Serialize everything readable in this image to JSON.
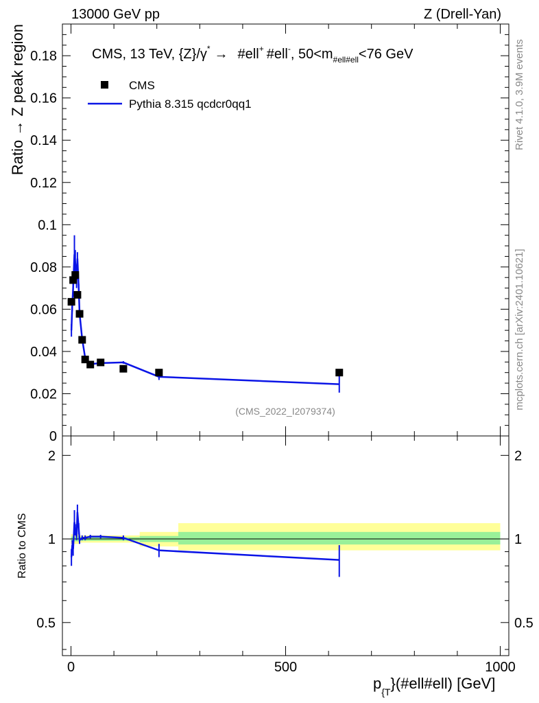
{
  "header": {
    "left": "13000 GeV pp",
    "right": "Z (Drell-Yan)"
  },
  "side_labels": {
    "rivet": "Rivet 4.1.0,  3.9M events",
    "mcplots": "mcplots.cern.ch [arXiv:2401.10621]"
  },
  "chart_data": [
    {
      "type": "scatter",
      "title": "CMS, 13 TeV, {Z}/γ* → #ell+ #ell-, 50<m#ell#ell<76 GeV",
      "title_parts": {
        "main": "CMS, 13 TeV, {Z}/γ",
        "sup1": "*",
        "arrow": "→",
        "ell1": "#ell",
        "sup2": "+",
        "ell2": "#ell",
        "sup3": "-",
        "range": ", 50<m",
        "sub": "#ell#ell",
        "tail": "<76 GeV"
      },
      "ylabel": "Ratio → Z peak region",
      "watermark": "(CMS_2022_I2079374)",
      "xlim": [
        -20,
        1020
      ],
      "ylim": [
        0,
        0.195
      ],
      "yticks": [
        0,
        0.02,
        0.04,
        0.06,
        0.08,
        0.1,
        0.12,
        0.14,
        0.16,
        0.18
      ],
      "ytick_labels": [
        "0",
        "0.02",
        "0.04",
        "0.06",
        "0.08",
        "0.1",
        "0.12",
        "0.14",
        "0.16",
        "0.18"
      ],
      "legend": [
        {
          "name": "CMS",
          "marker": "square"
        },
        {
          "name": "Pythia 8.315 qcdcr0qq1",
          "marker": "line"
        }
      ],
      "series": [
        {
          "name": "CMS",
          "x": [
            1,
            5,
            10,
            15,
            20,
            26,
            33,
            45,
            69,
            122,
            205,
            625
          ],
          "y": [
            0.0635,
            0.0738,
            0.0762,
            0.0668,
            0.0578,
            0.0455,
            0.0362,
            0.0338,
            0.0348,
            0.0318,
            0.03,
            0.03
          ]
        },
        {
          "name": "Pythia 8.315 qcdcr0qq1",
          "x": [
            1,
            3,
            5,
            8,
            10,
            13,
            15,
            18,
            20,
            26,
            33,
            45,
            69,
            122,
            205,
            625
          ],
          "y": [
            0.05,
            0.062,
            0.07,
            0.086,
            0.082,
            0.074,
            0.084,
            0.07,
            0.058,
            0.046,
            0.037,
            0.034,
            0.0345,
            0.0348,
            0.028,
            0.0245
          ],
          "yerr": [
            0.003,
            0.003,
            0.004,
            0.009,
            0.006,
            0.004,
            0.003,
            0.002,
            0.002,
            0.001,
            0.001,
            0.001,
            0.0006,
            0.0006,
            0.0015,
            0.004
          ]
        }
      ]
    },
    {
      "type": "line",
      "ylabel": "Ratio to CMS",
      "xlabel": "p{T}(#ell#ell) [GeV]",
      "xlabel_parts": {
        "p": "p",
        "sub": "{T",
        "rest": "}(#ell#ell) [GeV]"
      },
      "xlim": [
        -20,
        1020
      ],
      "ylim": [
        0.38,
        2.35
      ],
      "ylog": true,
      "yticks": [
        0.5,
        1,
        2
      ],
      "ytick_labels": [
        "0.5",
        "1",
        "2"
      ],
      "xticks": [
        0,
        500,
        1000
      ],
      "xtick_labels": [
        "0",
        "500",
        "1000"
      ],
      "bands": [
        {
          "x0": 0,
          "x1": 20,
          "yellow": [
            0.96,
            1.04
          ],
          "green": [
            0.98,
            1.02
          ]
        },
        {
          "x0": 20,
          "x1": 160,
          "yellow": [
            0.97,
            1.03
          ],
          "green": [
            0.985,
            1.015
          ]
        },
        {
          "x0": 160,
          "x1": 250,
          "yellow": [
            0.94,
            1.06
          ],
          "green": [
            0.975,
            1.025
          ]
        },
        {
          "x0": 250,
          "x1": 1000,
          "yellow": [
            0.91,
            1.14
          ],
          "green": [
            0.955,
            1.06
          ]
        }
      ],
      "series": [
        {
          "name": "Pythia 8.315 qcdcr0qq1",
          "x": [
            1,
            3,
            5,
            8,
            10,
            13,
            15,
            18,
            20,
            26,
            33,
            45,
            69,
            122,
            205,
            625
          ],
          "y": [
            0.86,
            0.95,
            0.92,
            1.15,
            1.08,
            1.02,
            1.25,
            1.09,
            0.99,
            1.01,
            1.01,
            1.02,
            1.02,
            1.01,
            0.91,
            0.84
          ],
          "yerr": [
            0.06,
            0.04,
            0.05,
            0.12,
            0.05,
            0.03,
            0.08,
            0.05,
            0.03,
            0.02,
            0.02,
            0.015,
            0.015,
            0.02,
            0.05,
            0.11
          ]
        }
      ]
    }
  ]
}
